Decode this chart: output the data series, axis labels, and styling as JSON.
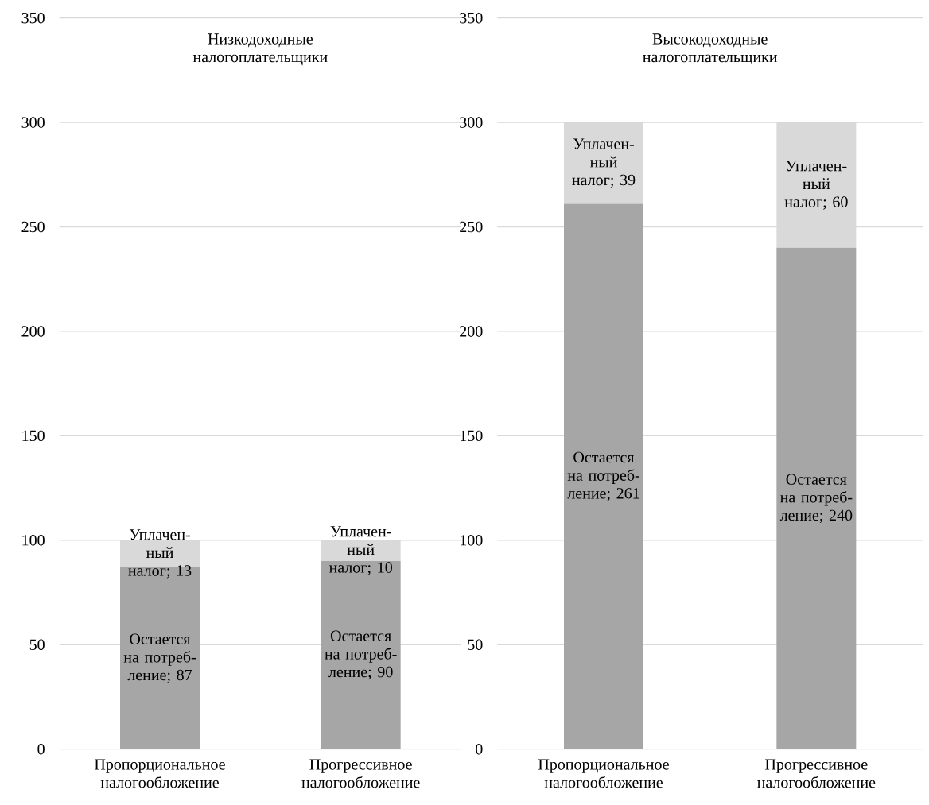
{
  "chart_data": [
    {
      "type": "bar",
      "stacked": true,
      "title": "Низкодоходные налогоплательщики",
      "categories": [
        "Пропорциональное налогообложение",
        "Прогрессивное налогообложение"
      ],
      "ylim": [
        0,
        350
      ],
      "yticks": [
        0,
        50,
        100,
        150,
        200,
        250,
        300,
        350
      ],
      "grid": "y",
      "series": [
        {
          "color": "#a6a6a6",
          "values": [
            87,
            90
          ],
          "value_labels": [
            "Остается на потреб-ление; 87",
            "Остается на потреб-ление; 90"
          ]
        },
        {
          "color": "#d9d9d9",
          "values": [
            13,
            10
          ],
          "value_labels": [
            "Уплачен-ный налог; 13",
            "Уплачен-ный налог; 10"
          ]
        }
      ]
    },
    {
      "type": "bar",
      "stacked": true,
      "title": "Высокодоходные налогоплательщики",
      "categories": [
        "Пропорциональное налогообложение",
        "Прогрессивное налогообложение"
      ],
      "ylim": [
        0,
        350
      ],
      "yticks": [
        0,
        50,
        100,
        150,
        200,
        250,
        300,
        350
      ],
      "grid": "y",
      "series": [
        {
          "color": "#a6a6a6",
          "values": [
            261,
            240
          ],
          "value_labels": [
            "Остается на потреб-ление; 261",
            "Остается на потреб-ление; 240"
          ]
        },
        {
          "color": "#d9d9d9",
          "values": [
            39,
            60
          ],
          "value_labels": [
            "Уплачен-ный налог; 39",
            "Уплачен-ный налог; 60"
          ]
        }
      ]
    }
  ]
}
